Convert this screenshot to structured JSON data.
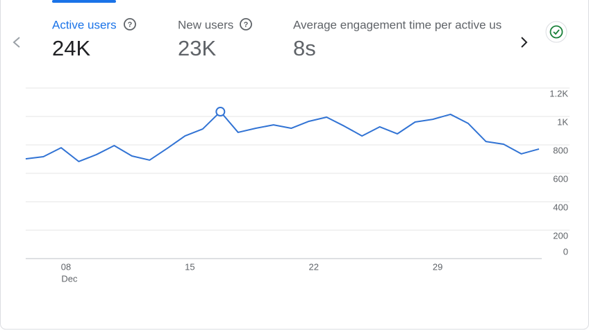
{
  "tabs": [
    {
      "label": "Active users",
      "value": "24K"
    },
    {
      "label": "New users",
      "value": "23K"
    },
    {
      "label": "Average engagement time per active us",
      "value": "8s"
    }
  ],
  "chart_data": {
    "type": "line",
    "categories": [
      null,
      null,
      "08",
      null,
      null,
      null,
      null,
      null,
      null,
      "15",
      null,
      null,
      null,
      null,
      null,
      null,
      "22",
      null,
      null,
      null,
      null,
      null,
      null,
      "29",
      null,
      null,
      null,
      null,
      null,
      null
    ],
    "x_sublabel": "Dec",
    "series": [
      {
        "name": "Active users",
        "color": "#3173d4",
        "values": [
          702,
          717,
          780,
          683,
          732,
          795,
          722,
          693,
          776,
          863,
          912,
          1034,
          888,
          917,
          941,
          917,
          966,
          995,
          932,
          863,
          927,
          878,
          961,
          980,
          1015,
          951,
          824,
          805,
          737,
          771
        ]
      }
    ],
    "highlight": 11,
    "ylim": [
      0,
      1200
    ],
    "yticks": [
      {
        "value": 1200,
        "label": "1.2K"
      },
      {
        "value": 1000,
        "label": "1K"
      },
      800,
      600,
      400,
      200,
      0
    ],
    "grid": true
  }
}
